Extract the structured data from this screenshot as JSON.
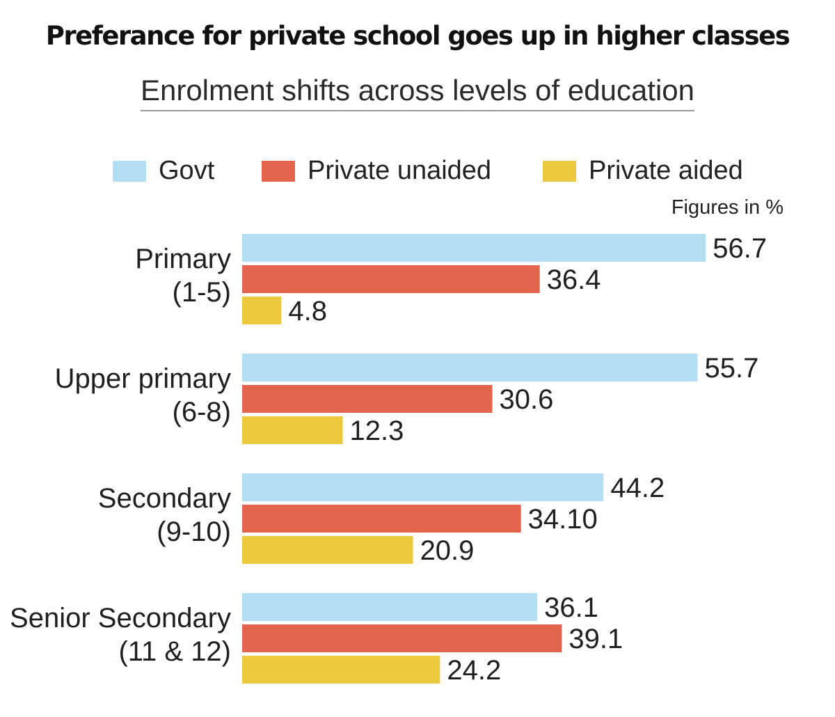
{
  "chart_data": {
    "type": "bar",
    "orientation": "horizontal",
    "title": "Preferance for private school goes up in higher classes",
    "subtitle": "Enrolment shifts across levels of education",
    "note": "Figures in %",
    "categories": [
      [
        "Primary",
        "(1-5)"
      ],
      [
        "Upper primary",
        "(6-8)"
      ],
      [
        "Secondary",
        "(9-10)"
      ],
      [
        "Senior Secondary",
        "(11 & 12)"
      ]
    ],
    "series": [
      {
        "name": "Govt",
        "color": "#b3dff2",
        "values": [
          56.7,
          55.7,
          44.2,
          36.1
        ],
        "labels": [
          "56.7",
          "55.7",
          "44.2",
          "36.1"
        ]
      },
      {
        "name": "Private unaided",
        "color": "#e2644c",
        "values": [
          36.4,
          30.6,
          34.1,
          39.1
        ],
        "labels": [
          "36.4",
          "30.6",
          "34.10",
          "39.1"
        ]
      },
      {
        "name": "Private aided",
        "color": "#ecc940",
        "values": [
          4.8,
          12.3,
          20.9,
          24.2
        ],
        "labels": [
          "4.8",
          "12.3",
          "20.9",
          "24.2"
        ]
      }
    ],
    "xlim": [
      0,
      60
    ],
    "legend_position": "top",
    "grid": false
  }
}
